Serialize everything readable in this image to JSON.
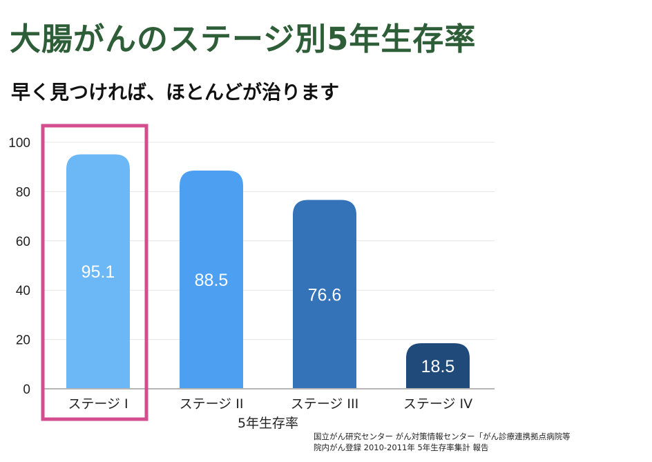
{
  "title": "大腸がんのステージ別5年生存率",
  "subtitle": "早く見つければ、ほとんどが治ります",
  "source": {
    "line1": "国立がん研究センター がん対策情報センター「がん診療連携拠点病院等",
    "line2": "院内がん登録 2010-2011年 5年生存率集計 報告"
  },
  "chart_data": {
    "type": "bar",
    "categories": [
      "ステージ I",
      "ステージ II",
      "ステージ III",
      "ステージ IV"
    ],
    "values": [
      95.1,
      88.5,
      76.6,
      18.5
    ],
    "data_labels": [
      "95.1",
      "88.5",
      "76.6",
      "18.5"
    ],
    "xlabel": "5年生存率",
    "ylabel": "",
    "ylim": [
      0,
      100
    ],
    "yticks": [
      0,
      20,
      40,
      60,
      80,
      100
    ],
    "grid": true,
    "highlight_index": 0,
    "colors": [
      "#6cb8f6",
      "#4c9ff1",
      "#3473b8",
      "#1f4a7a"
    ],
    "highlight_color": "#d24e8e",
    "grid_color": "#e4e4e4",
    "axis_color": "#b5b5b5"
  }
}
